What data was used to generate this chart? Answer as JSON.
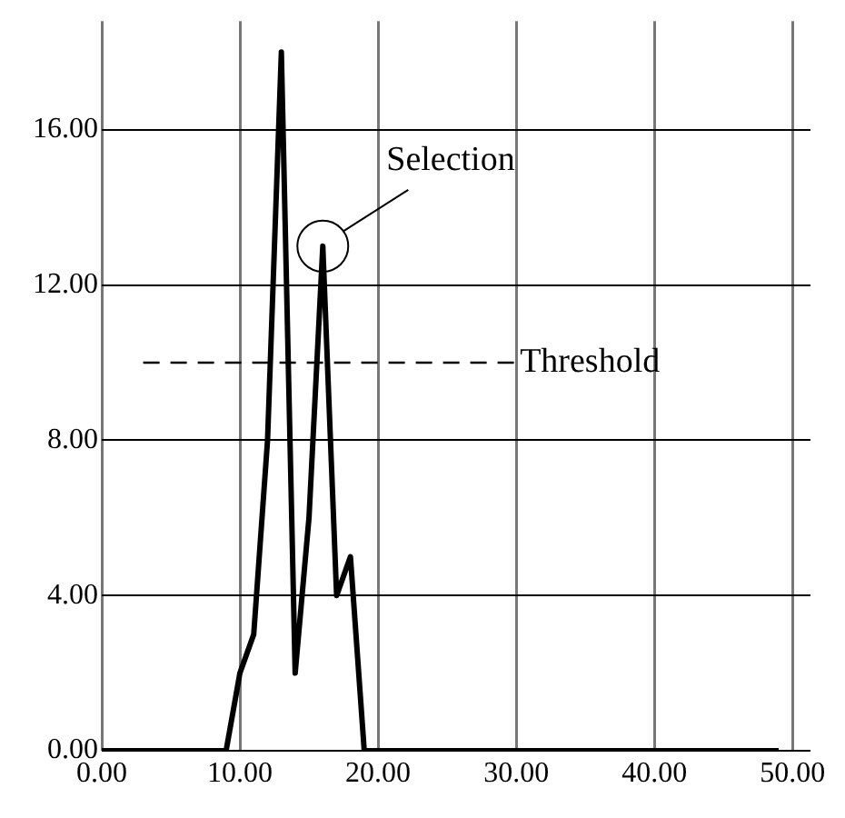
{
  "chart_data": {
    "type": "line",
    "x": [
      0,
      1,
      2,
      3,
      4,
      5,
      6,
      7,
      8,
      9,
      10,
      11,
      12,
      13,
      14,
      15,
      16,
      17,
      18,
      19,
      20,
      21,
      22,
      23,
      24,
      25,
      26,
      27,
      28,
      29,
      30,
      31,
      32,
      33,
      34,
      35,
      36,
      37,
      38,
      39,
      40,
      41,
      42,
      43,
      44,
      45,
      46,
      47,
      48,
      49
    ],
    "series": [
      {
        "color": "#000000",
        "values": [
          0,
          0,
          0,
          0,
          0,
          0,
          0,
          0,
          0,
          0,
          2,
          3,
          8,
          18,
          2,
          6,
          13,
          4,
          5,
          0,
          0,
          0,
          0,
          0,
          0,
          0,
          0,
          0,
          0,
          0,
          0,
          0,
          0,
          0,
          0,
          0,
          0,
          0,
          0,
          0,
          0,
          0,
          0,
          0,
          0,
          0,
          0,
          0,
          0,
          0
        ]
      },
      {
        "name": "Threshold",
        "color": "#000000",
        "line_style": "dashed",
        "x": [
          3,
          30
        ],
        "values": [
          10,
          10
        ]
      }
    ],
    "xlim": [
      0,
      51.3
    ],
    "ylim": [
      0,
      18.8
    ],
    "xticks": [
      {
        "value": 0,
        "label": "0.00"
      },
      {
        "value": 10,
        "label": "10.00"
      },
      {
        "value": 20,
        "label": "20.00"
      },
      {
        "value": 30,
        "label": "30.00"
      },
      {
        "value": 40,
        "label": "40.00"
      },
      {
        "value": 50,
        "label": "50.00"
      }
    ],
    "yticks": [
      {
        "value": 0,
        "label": "0.00"
      },
      {
        "value": 4,
        "label": "4.00"
      },
      {
        "value": 8,
        "label": "8.00"
      },
      {
        "value": 12,
        "label": "12.00"
      },
      {
        "value": 16,
        "label": "16.00"
      }
    ],
    "grid": true,
    "legend": false,
    "marker": "none",
    "line_style": "solid",
    "annotations": [
      {
        "text": "Selection",
        "x": 16,
        "y": 13
      }
    ]
  }
}
